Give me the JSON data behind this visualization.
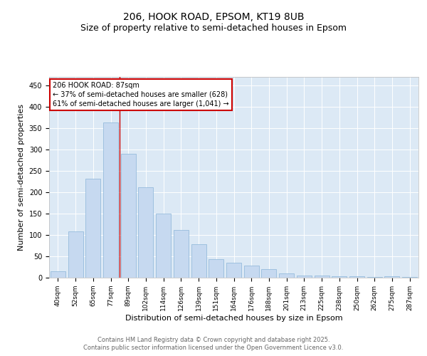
{
  "title1": "206, HOOK ROAD, EPSOM, KT19 8UB",
  "title2": "Size of property relative to semi-detached houses in Epsom",
  "xlabel": "Distribution of semi-detached houses by size in Epsom",
  "ylabel": "Number of semi-detached properties",
  "categories": [
    "40sqm",
    "52sqm",
    "65sqm",
    "77sqm",
    "89sqm",
    "102sqm",
    "114sqm",
    "126sqm",
    "139sqm",
    "151sqm",
    "164sqm",
    "176sqm",
    "188sqm",
    "201sqm",
    "213sqm",
    "225sqm",
    "238sqm",
    "250sqm",
    "262sqm",
    "275sqm",
    "287sqm"
  ],
  "values": [
    15,
    108,
    231,
    362,
    289,
    212,
    150,
    111,
    78,
    44,
    35,
    28,
    20,
    10,
    5,
    5,
    4,
    4,
    2,
    3,
    2
  ],
  "bar_color": "#c6d9f0",
  "bar_edge_color": "#8ab4d8",
  "vline_color": "#cc0000",
  "annotation_title": "206 HOOK ROAD: 87sqm",
  "annotation_line1": "← 37% of semi-detached houses are smaller (628)",
  "annotation_line2": "61% of semi-detached houses are larger (1,041) →",
  "annotation_box_color": "#cc0000",
  "ylim": [
    0,
    470
  ],
  "yticks": [
    0,
    50,
    100,
    150,
    200,
    250,
    300,
    350,
    400,
    450
  ],
  "footnote1": "Contains HM Land Registry data © Crown copyright and database right 2025.",
  "footnote2": "Contains public sector information licensed under the Open Government Licence v3.0.",
  "plot_bg_color": "#dce9f5",
  "grid_color": "#ffffff",
  "title_fontsize": 10,
  "subtitle_fontsize": 9,
  "tick_fontsize": 6.5,
  "axis_label_fontsize": 8,
  "annotation_fontsize": 7,
  "footnote_fontsize": 6
}
